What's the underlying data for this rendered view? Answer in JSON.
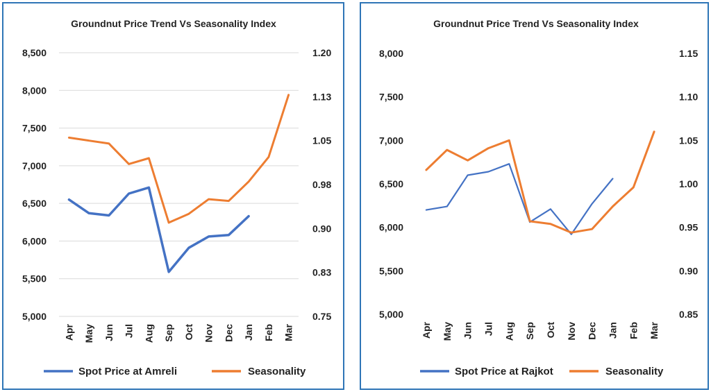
{
  "chart_data": [
    {
      "type": "line",
      "title": "Groundnut Price Trend Vs Seasonality Index",
      "categories": [
        "Apr",
        "May",
        "Jun",
        "Jul",
        "Aug",
        "Sep",
        "Oct",
        "Nov",
        "Dec",
        "Jan",
        "Feb",
        "Mar"
      ],
      "y_left": {
        "ticks": [
          "8,500",
          "8,000",
          "7,500",
          "7,000",
          "6,500",
          "6,000",
          "5,500",
          "5,000"
        ],
        "min": 5000,
        "max": 8500
      },
      "y_right": {
        "ticks": [
          "1.20",
          "1.13",
          "1.05",
          "0.98",
          "0.90",
          "0.83",
          "0.75"
        ],
        "min": 0.75,
        "max": 1.2
      },
      "grid": true,
      "legend_position": "bottom",
      "series": [
        {
          "name": "Spot Price at Amreli",
          "axis": "left",
          "color": "#4472c4",
          "values": [
            6550,
            6370,
            6340,
            6630,
            6710,
            5590,
            5910,
            6060,
            6080,
            6330,
            null,
            null
          ]
        },
        {
          "name": "Seasonality",
          "axis": "right",
          "color": "#ed7d31",
          "values": [
            1.055,
            1.05,
            1.045,
            1.01,
            1.02,
            0.91,
            0.925,
            0.95,
            0.947,
            0.98,
            1.022,
            1.128
          ]
        }
      ]
    },
    {
      "type": "line",
      "title": "Groundnut Price Trend  Vs Seasonality Index",
      "categories": [
        "Apr",
        "May",
        "Jun",
        "Jul",
        "Aug",
        "Sep",
        "Oct",
        "Nov",
        "Dec",
        "Jan",
        "Feb",
        "Mar"
      ],
      "y_left": {
        "ticks": [
          "8,000",
          "7,500",
          "7,000",
          "6,500",
          "6,000",
          "5,500",
          "5,000"
        ],
        "min": 5000,
        "max": 8000
      },
      "y_right": {
        "ticks": [
          "1.15",
          "1.10",
          "1.05",
          "1.00",
          "0.95",
          "0.90",
          "0.85"
        ],
        "min": 0.85,
        "max": 1.15
      },
      "grid": false,
      "legend_position": "bottom",
      "series": [
        {
          "name": "Spot Price at Rajkot",
          "axis": "left",
          "color": "#4472c4",
          "values": [
            6200,
            6240,
            6600,
            6640,
            6730,
            6060,
            6210,
            5920,
            6270,
            6560,
            null,
            null
          ]
        },
        {
          "name": "Seasonality",
          "axis": "right",
          "color": "#ed7d31",
          "values": [
            1.016,
            1.039,
            1.027,
            1.041,
            1.05,
            0.957,
            0.954,
            0.944,
            0.948,
            0.974,
            0.996,
            1.06
          ]
        }
      ]
    }
  ]
}
